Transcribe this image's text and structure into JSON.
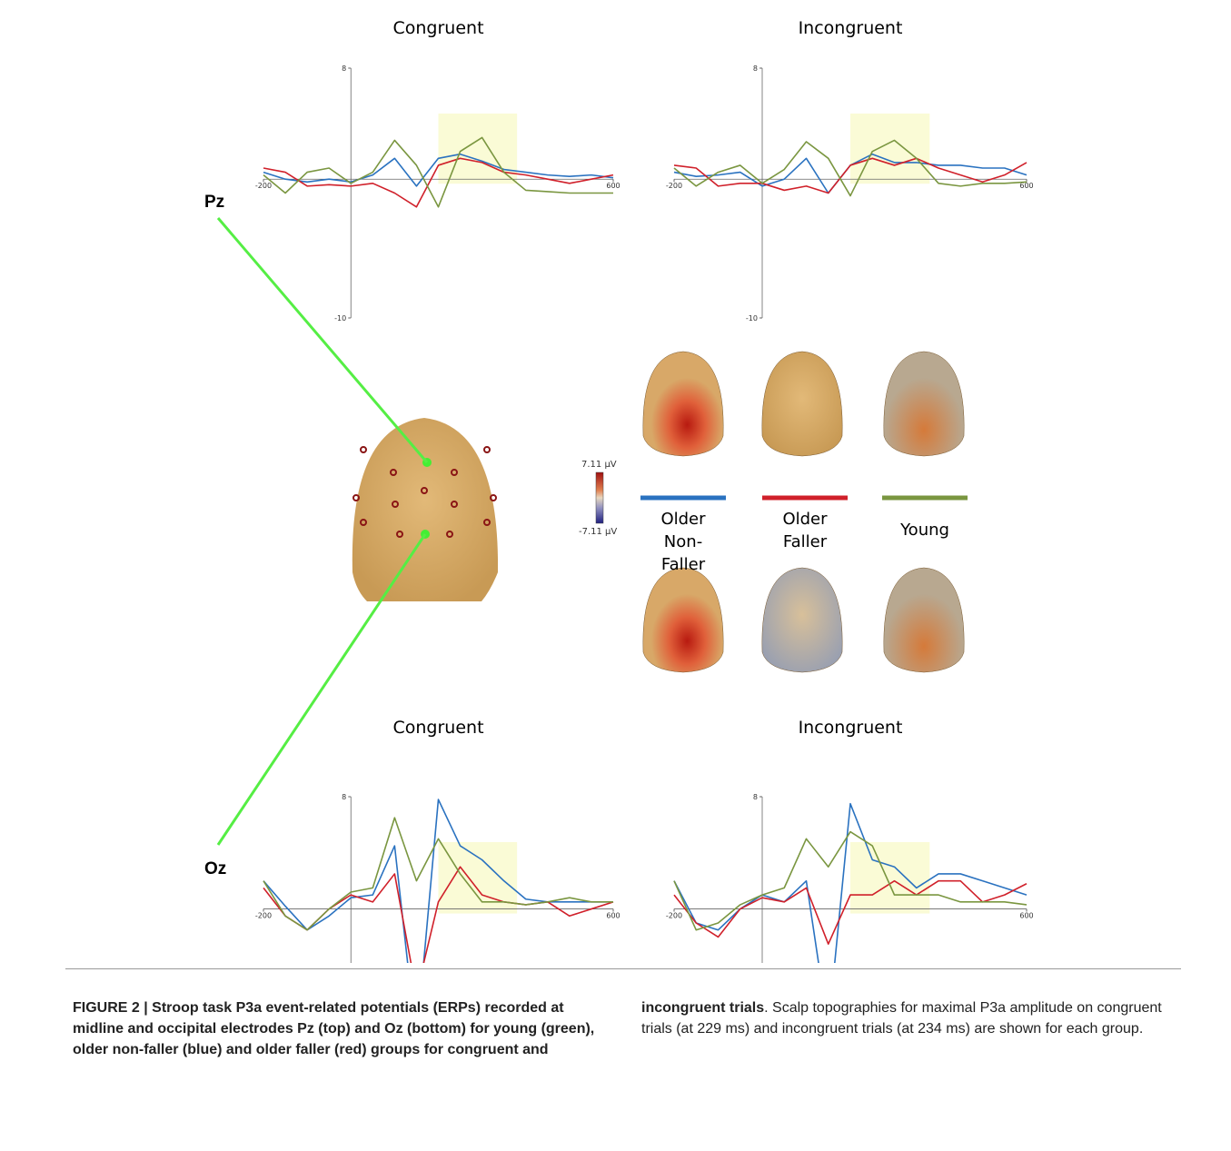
{
  "chart_data": [
    {
      "type": "line",
      "title": "Congruent",
      "x": [
        -200,
        -150,
        -100,
        -50,
        0,
        50,
        100,
        150,
        200,
        250,
        300,
        350,
        400,
        450,
        500,
        550,
        600
      ],
      "xlim": [
        -200,
        600
      ],
      "xticks": [
        -200,
        600
      ],
      "ylim": [
        -10,
        8
      ],
      "yticks": [
        -10,
        8
      ],
      "highlight_window": [
        200,
        380
      ],
      "series": [
        {
          "name": "Older Non-Faller",
          "color": "#2a72c0",
          "values": [
            0.5,
            0,
            -0.2,
            0,
            -0.2,
            0.3,
            1.5,
            -0.5,
            1.5,
            1.8,
            1.3,
            0.7,
            0.5,
            0.3,
            0.2,
            0.3,
            0.1
          ]
        },
        {
          "name": "Older Faller",
          "color": "#d0202a",
          "values": [
            0.8,
            0.5,
            -0.5,
            -0.4,
            -0.5,
            -0.3,
            -1.0,
            -2.0,
            1.0,
            1.5,
            1.2,
            0.5,
            0.3,
            0,
            -0.3,
            0,
            0.3
          ]
        },
        {
          "name": "Young",
          "color": "#7a9640",
          "values": [
            0.3,
            -1.0,
            0.5,
            0.8,
            -0.3,
            0.5,
            2.8,
            1.0,
            -2.0,
            2.0,
            3.0,
            0.5,
            -0.8,
            -0.9,
            -1.0,
            -1.0,
            -1.0
          ]
        }
      ]
    },
    {
      "type": "line",
      "title": "Incongruent",
      "x": [
        -200,
        -150,
        -100,
        -50,
        0,
        50,
        100,
        150,
        200,
        250,
        300,
        350,
        400,
        450,
        500,
        550,
        600
      ],
      "xlim": [
        -200,
        600
      ],
      "xticks": [
        -200,
        600
      ],
      "ylim": [
        -10,
        8
      ],
      "yticks": [
        -10,
        8
      ],
      "highlight_window": [
        200,
        380
      ],
      "series": [
        {
          "color": "#2a72c0",
          "values": [
            0.5,
            0.2,
            0.3,
            0.5,
            -0.5,
            0,
            1.5,
            -1.0,
            1.0,
            1.8,
            1.2,
            1.2,
            1.0,
            1.0,
            0.8,
            0.8,
            0.3
          ]
        },
        {
          "color": "#d0202a",
          "values": [
            1.0,
            0.8,
            -0.5,
            -0.3,
            -0.3,
            -0.8,
            -0.5,
            -1.0,
            1.0,
            1.5,
            1.0,
            1.5,
            0.8,
            0.3,
            -0.2,
            0.3,
            1.2
          ]
        },
        {
          "color": "#7a9640",
          "values": [
            0.8,
            -0.5,
            0.5,
            1.0,
            -0.3,
            0.7,
            2.7,
            1.5,
            -1.2,
            2.0,
            2.8,
            1.5,
            -0.3,
            -0.5,
            -0.3,
            -0.3,
            -0.2
          ]
        }
      ]
    },
    {
      "type": "line",
      "title": "Congruent",
      "x": [
        -200,
        -150,
        -100,
        -50,
        0,
        50,
        100,
        150,
        200,
        250,
        300,
        350,
        400,
        450,
        500,
        550,
        600
      ],
      "xlim": [
        -200,
        600
      ],
      "xticks": [
        -200,
        600
      ],
      "ylim": [
        -10,
        8
      ],
      "yticks": [
        -10,
        8
      ],
      "highlight_window": [
        200,
        380
      ],
      "series": [
        {
          "color": "#2a72c0",
          "values": [
            2.0,
            0.2,
            -1.5,
            -0.5,
            0.8,
            1.0,
            4.5,
            -9.5,
            7.8,
            4.5,
            3.5,
            2.0,
            0.7,
            0.5,
            0.5,
            0.5,
            0.5
          ]
        },
        {
          "color": "#d0202a",
          "values": [
            1.5,
            -0.5,
            -1.5,
            0,
            1.0,
            0.5,
            2.5,
            -6.0,
            0.5,
            3.0,
            1.0,
            0.5,
            0.3,
            0.5,
            -0.5,
            0,
            0.5
          ]
        },
        {
          "color": "#7a9640",
          "values": [
            2.0,
            -0.5,
            -1.5,
            0,
            1.2,
            1.5,
            6.5,
            2.0,
            5.0,
            2.5,
            0.5,
            0.5,
            0.3,
            0.5,
            0.8,
            0.5,
            0.5
          ]
        }
      ]
    },
    {
      "type": "line",
      "title": "Incongruent",
      "x": [
        -200,
        -150,
        -100,
        -50,
        0,
        50,
        100,
        150,
        200,
        250,
        300,
        350,
        400,
        450,
        500,
        550,
        600
      ],
      "xlim": [
        -200,
        600
      ],
      "xticks": [
        -200,
        600
      ],
      "ylim": [
        -10,
        8
      ],
      "yticks": [
        -10,
        8
      ],
      "highlight_window": [
        200,
        380
      ],
      "series": [
        {
          "color": "#2a72c0",
          "values": [
            2.0,
            -1.0,
            -1.5,
            0,
            1.0,
            0.5,
            2.0,
            -8.5,
            7.5,
            3.5,
            3.0,
            1.5,
            2.5,
            2.5,
            2.0,
            1.5,
            1.0
          ]
        },
        {
          "color": "#d0202a",
          "values": [
            1.0,
            -1.0,
            -2.0,
            0,
            0.8,
            0.5,
            1.5,
            -2.5,
            1.0,
            1.0,
            2.0,
            1.0,
            2.0,
            2.0,
            0.5,
            1.0,
            1.8
          ]
        },
        {
          "color": "#7a9640",
          "values": [
            2.0,
            -1.5,
            -1.0,
            0.3,
            1.0,
            1.5,
            5.0,
            3.0,
            5.5,
            4.5,
            1.0,
            1.0,
            1.0,
            0.5,
            0.5,
            0.5,
            0.3
          ]
        }
      ]
    }
  ],
  "electrodes": [
    "Pz",
    "Oz"
  ],
  "colorbar": {
    "max_label": "7.11 µV",
    "min_label": "-7.11 µV"
  },
  "caption": {
    "label": "FIGURE 2 | Stroop task P3a event-related potentials (ERPs) recorded at midline and occipital electrodes Pz (top) and Oz (bottom) for young (green), older non-faller (blue) and older faller (red) groups for congruent and incongruent trials",
    "text": ". Scalp topographies for maximal P3a amplitude on congruent trials (at 229 ms) and incongruent trials (at 234 ms) are shown for each group."
  }
}
